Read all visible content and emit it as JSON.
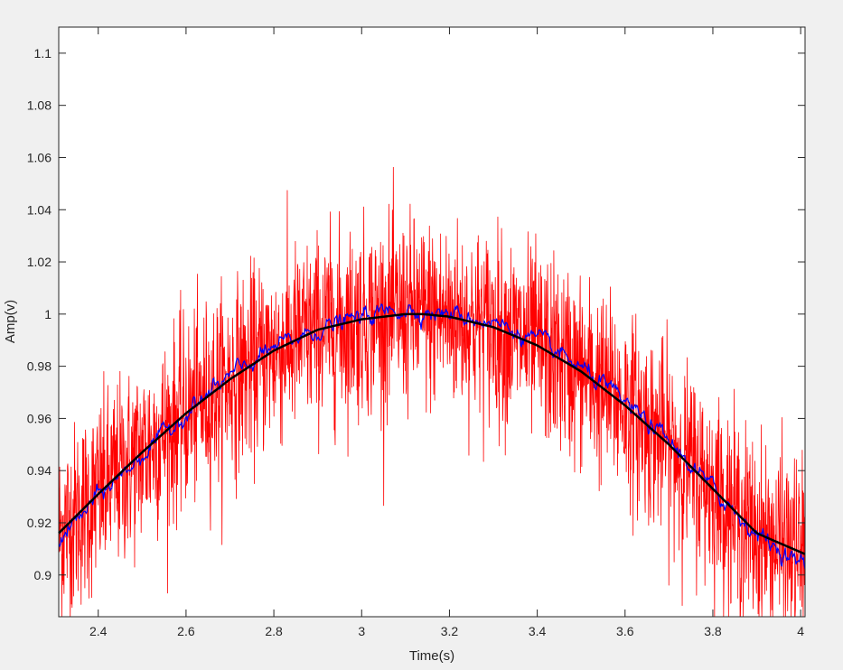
{
  "chart_data": {
    "type": "line",
    "title": "",
    "xlabel": "Time(s)",
    "ylabel": "Amp(v)",
    "xlim": [
      2.31,
      4.01
    ],
    "ylim": [
      0.884,
      1.11
    ],
    "xticks": [
      2.4,
      2.6,
      2.8,
      3,
      3.2,
      3.4,
      3.6,
      3.8,
      4
    ],
    "xtick_labels": [
      "2.4",
      "2.6",
      "2.8",
      "3",
      "3.2",
      "3.4",
      "3.6",
      "3.8",
      "4"
    ],
    "yticks": [
      0.9,
      0.92,
      0.94,
      0.96,
      0.98,
      1,
      1.02,
      1.04,
      1.06,
      1.08,
      1.1
    ],
    "ytick_labels": [
      "0.9",
      "0.92",
      "0.94",
      "0.96",
      "0.98",
      "1",
      "1.02",
      "1.04",
      "1.06",
      "1.08",
      "1.1"
    ],
    "grid": false,
    "legend": "none",
    "series": [
      {
        "color": "#ff0000",
        "style": "noisy signal",
        "noise_sd": 0.018,
        "x": [
          2.31,
          2.4,
          2.5,
          2.6,
          2.7,
          2.8,
          2.9,
          3.0,
          3.1,
          3.14,
          3.2,
          3.3,
          3.4,
          3.5,
          3.6,
          3.7,
          3.8,
          3.9,
          4.01
        ],
        "values": [
          0.916,
          0.931,
          0.947,
          0.962,
          0.975,
          0.986,
          0.994,
          0.998,
          1.0,
          1.0,
          0.999,
          0.995,
          0.988,
          0.978,
          0.965,
          0.95,
          0.933,
          0.915,
          0.907
        ]
      },
      {
        "color": "#0000ff",
        "style": "smoothed signal",
        "noise_sd": 0.003,
        "x": [
          2.31,
          2.4,
          2.5,
          2.6,
          2.7,
          2.8,
          2.9,
          3.0,
          3.1,
          3.14,
          3.2,
          3.3,
          3.4,
          3.5,
          3.6,
          3.7,
          3.8,
          3.9,
          4.01
        ],
        "values": [
          0.913,
          0.93,
          0.946,
          0.962,
          0.976,
          0.987,
          0.994,
          0.999,
          1.002,
          1.001,
          1.0,
          0.997,
          0.99,
          0.979,
          0.966,
          0.951,
          0.933,
          0.916,
          0.903
        ]
      },
      {
        "color": "#000000",
        "style": "fitted curve",
        "x": [
          2.31,
          2.4,
          2.5,
          2.6,
          2.7,
          2.8,
          2.9,
          3.0,
          3.1,
          3.14,
          3.2,
          3.3,
          3.4,
          3.5,
          3.6,
          3.7,
          3.8,
          3.9,
          4.01
        ],
        "values": [
          0.916,
          0.931,
          0.947,
          0.962,
          0.975,
          0.986,
          0.994,
          0.998,
          1.0,
          1.0,
          0.999,
          0.995,
          0.988,
          0.978,
          0.965,
          0.95,
          0.933,
          0.916,
          0.908
        ]
      }
    ]
  }
}
